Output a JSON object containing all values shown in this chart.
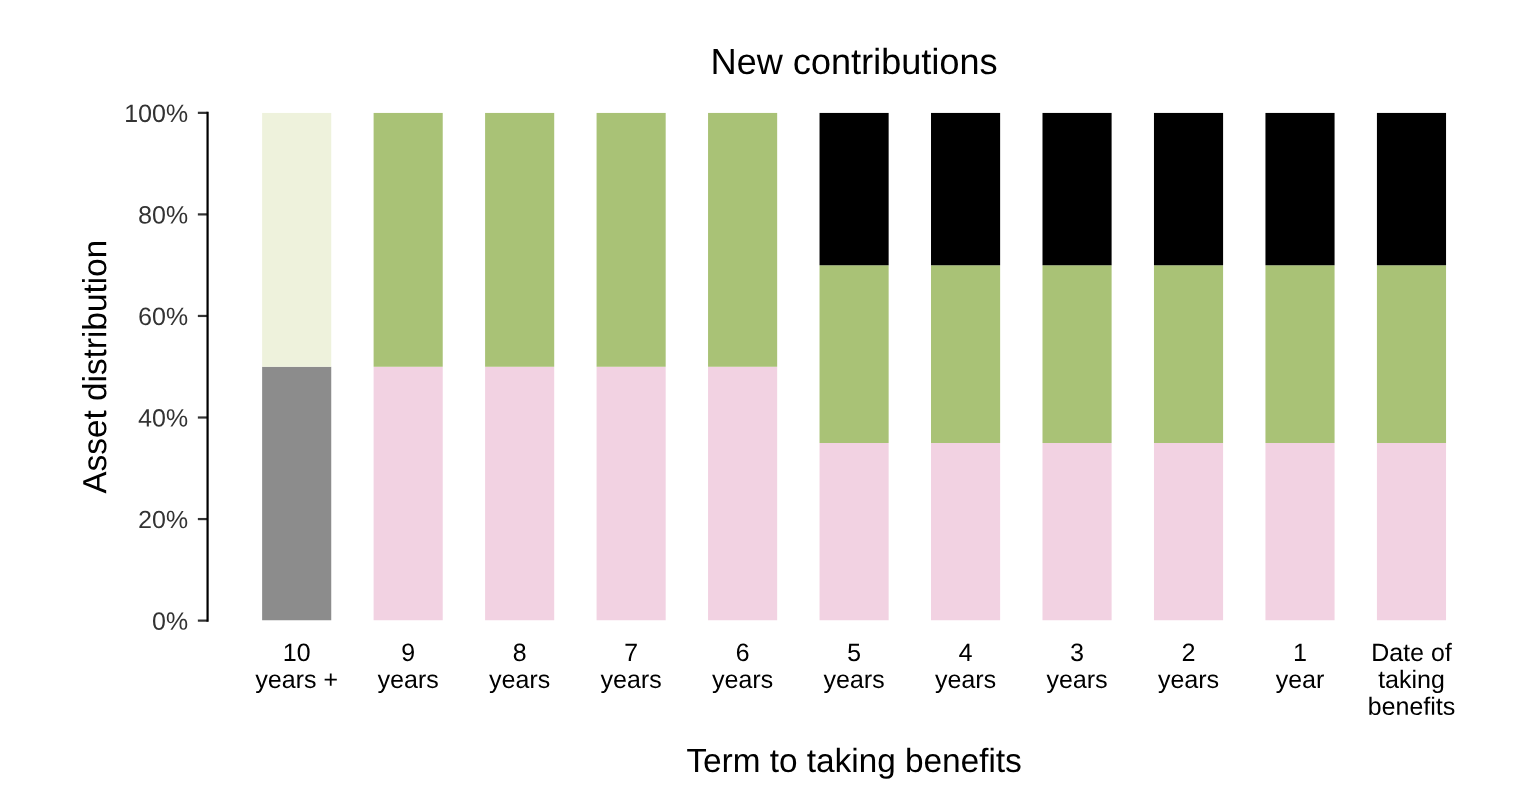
{
  "chart_data": {
    "type": "bar",
    "stacked": true,
    "title": "New contributions",
    "xlabel": "Term to taking benefits",
    "ylabel": "Asset distribution",
    "categories": [
      "10\nyears +",
      "9\nyears",
      "8\nyears",
      "7\nyears",
      "6\nyears",
      "5\nyears",
      "4\nyears",
      "3\nyears",
      "2\nyears",
      "1\nyear",
      "Date of\ntaking\nbenefits"
    ],
    "series": [
      {
        "color": "#8c8c8c",
        "values": [
          50,
          null,
          null,
          null,
          null,
          null,
          null,
          null,
          null,
          null,
          null
        ]
      },
      {
        "color": "#f2d2e2",
        "values": [
          null,
          50,
          50,
          50,
          50,
          35,
          35,
          35,
          35,
          35,
          35
        ]
      },
      {
        "color": "#a9c276",
        "values": [
          null,
          50,
          50,
          50,
          50,
          35,
          35,
          35,
          35,
          35,
          35
        ]
      },
      {
        "color": "#eef2dc",
        "values": [
          50,
          null,
          null,
          null,
          null,
          null,
          null,
          null,
          null,
          null,
          null
        ]
      },
      {
        "color": "#000000",
        "values": [
          null,
          null,
          null,
          null,
          null,
          30,
          30,
          30,
          30,
          30,
          30
        ]
      }
    ],
    "ylim": [
      0,
      100
    ],
    "yticks": [
      {
        "value": 0,
        "label": "0%"
      },
      {
        "value": 20,
        "label": "20%"
      },
      {
        "value": 40,
        "label": "40%"
      },
      {
        "value": 60,
        "label": "60%"
      },
      {
        "value": 80,
        "label": "80%"
      },
      {
        "value": 100,
        "label": "100%"
      }
    ],
    "grid": false
  }
}
